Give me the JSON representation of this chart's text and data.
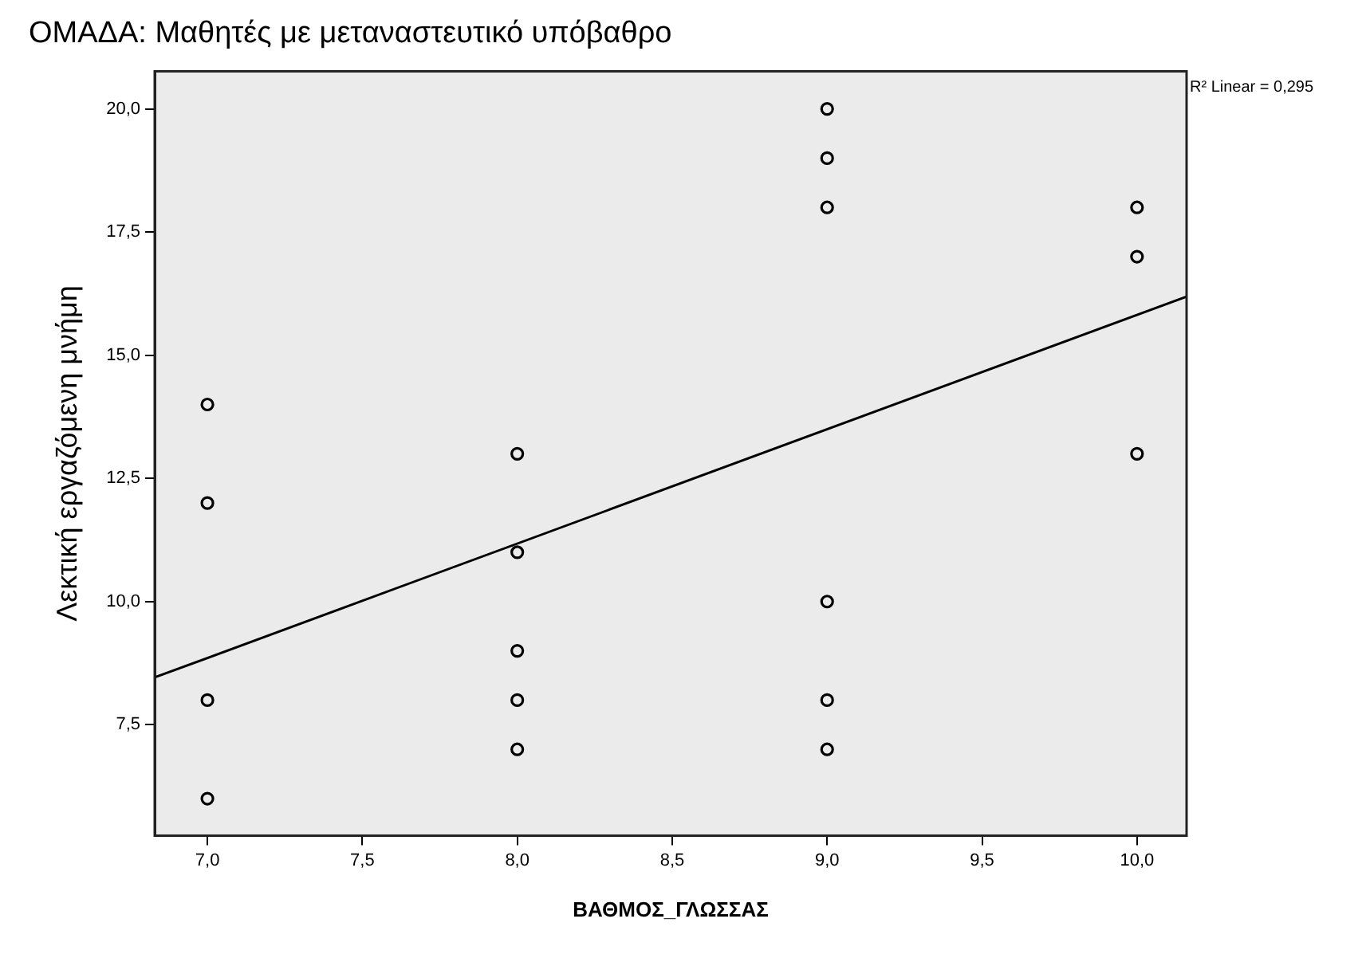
{
  "chart_data": {
    "type": "scatter",
    "title": "ΟΜΑΔΑ: Μαθητές με μεταναστευτικό υπόβαθρο",
    "xlabel": "ΒΑΘΜΟΣ_ΓΛΩΣΣΑΣ",
    "ylabel": "Λεκτική εργαζόμενη μνήμη",
    "annotations": [
      "R² Linear = 0,295"
    ],
    "xlim": [
      6.83,
      10.16
    ],
    "ylim": [
      5.25,
      20.76
    ],
    "xticks": [
      {
        "value": 7,
        "label": "7,0"
      },
      {
        "value": 7.5,
        "label": "7,5"
      },
      {
        "value": 8,
        "label": "8,0"
      },
      {
        "value": 8.5,
        "label": "8,5"
      },
      {
        "value": 9,
        "label": "9,0"
      },
      {
        "value": 9.5,
        "label": "9,5"
      },
      {
        "value": 10,
        "label": "10,0"
      }
    ],
    "yticks": [
      {
        "value": 7.5,
        "label": "7,5"
      },
      {
        "value": 10,
        "label": "10,0"
      },
      {
        "value": 12.5,
        "label": "12,5"
      },
      {
        "value": 15,
        "label": "15,0"
      },
      {
        "value": 17.5,
        "label": "17,5"
      },
      {
        "value": 20,
        "label": "20,0"
      }
    ],
    "grid": false,
    "legend": false,
    "marker": "circle",
    "series": [
      {
        "color": "#000000",
        "x": [
          7,
          7,
          7,
          7,
          8,
          8,
          8,
          8,
          8,
          9,
          9,
          9,
          9,
          9,
          9,
          10,
          10,
          10
        ],
        "values": [
          14,
          12,
          8,
          6,
          13,
          11,
          9,
          8,
          7,
          20,
          19,
          18,
          10,
          8,
          7,
          18,
          17,
          13
        ]
      },
      {
        "type": "line",
        "color": "#000000",
        "marker": "none",
        "line_style": "solid",
        "x": [
          6.83,
          10.16
        ],
        "values": [
          8.46,
          16.19
        ]
      }
    ]
  }
}
